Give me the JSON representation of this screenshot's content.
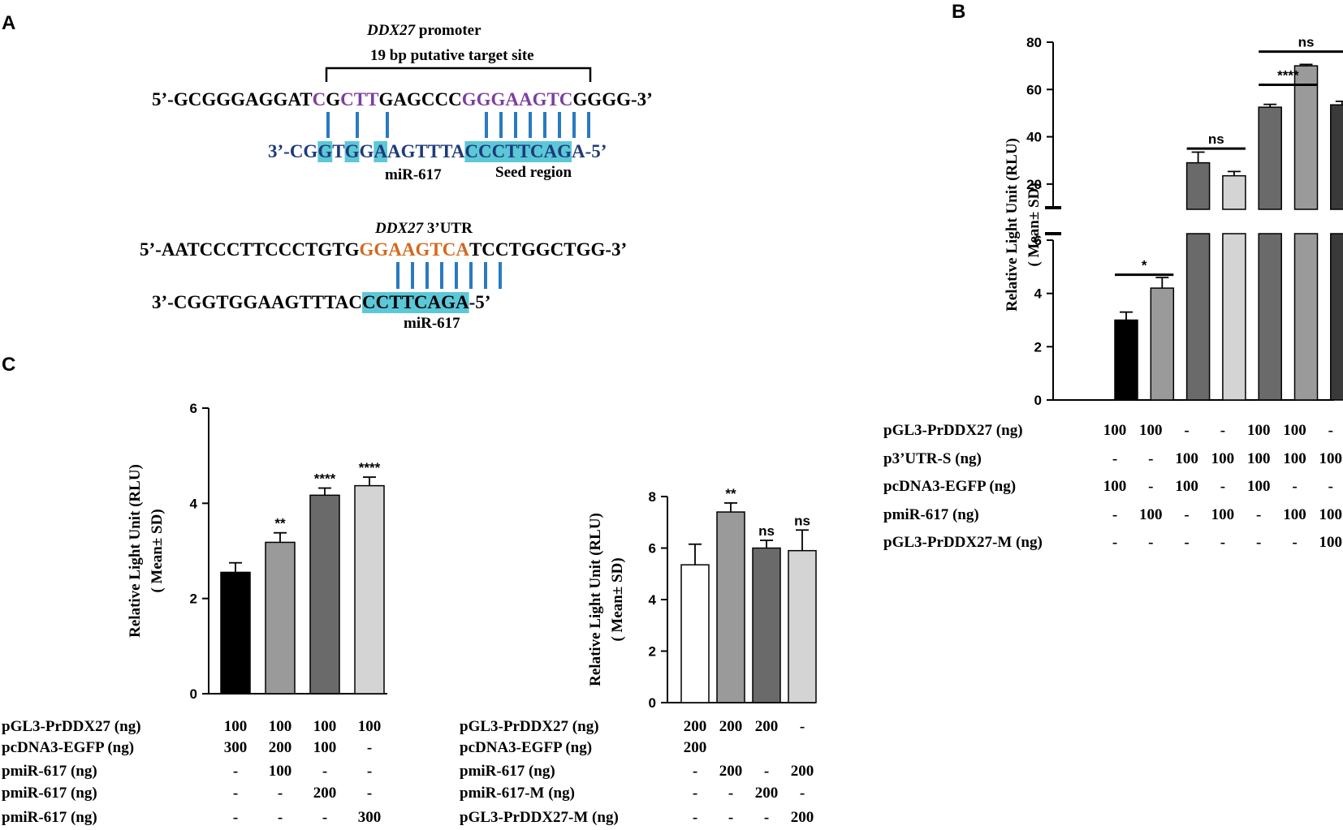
{
  "panelA": {
    "letter": "A",
    "promoter": {
      "gene": "DDX27",
      "suffix": " promoter",
      "site_label": "19 bp putative target site",
      "top_parts": [
        {
          "t": "5’-GCGGGAGGAT",
          "c": "#000000"
        },
        {
          "t": "C",
          "c": "#7b3fa0"
        },
        {
          "t": "G",
          "c": "#000000"
        },
        {
          "t": "C",
          "c": "#7b3fa0"
        },
        {
          "t": "TT",
          "c": "#7b3fa0"
        },
        {
          "t": "GAGCCC",
          "c": "#000000"
        },
        {
          "t": "GGGAAGTC",
          "c": "#7b3fa0"
        },
        {
          "t": "GGGG-3’",
          "c": "#000000"
        }
      ],
      "bottom_parts": [
        {
          "t": "3’-CG",
          "c": "#1f3a7a",
          "h": false
        },
        {
          "t": "G",
          "c": "#1f3a7a",
          "h": true
        },
        {
          "t": "T",
          "c": "#1f3a7a",
          "h": false
        },
        {
          "t": "G",
          "c": "#1f3a7a",
          "h": true
        },
        {
          "t": "G",
          "c": "#1f3a7a",
          "h": false
        },
        {
          "t": "A",
          "c": "#1f3a7a",
          "h": true
        },
        {
          "t": "AGTTTA",
          "c": "#1f3a7a",
          "h": false
        },
        {
          "t": "CCCTTCAG",
          "c": "#1f3a7a",
          "h": true
        },
        {
          "t": "A-5’",
          "c": "#1f3a7a",
          "h": false
        }
      ],
      "mirna_label": "miR-617",
      "seed_label": "Seed region"
    },
    "utr": {
      "gene": "DDX27",
      "suffix": " 3’UTR",
      "top_parts": [
        {
          "t": "5’-AATCCCTTCCCTGTG",
          "c": "#000000"
        },
        {
          "t": "GGAAGTCA",
          "c": "#d2691e"
        },
        {
          "t": "TCCTGGCTGG-3’",
          "c": "#000000"
        }
      ],
      "bottom_parts": [
        {
          "t": "3’-CGGTGGAAGTTTAC",
          "c": "#000000",
          "h": false
        },
        {
          "t": "CCTTCAGA",
          "c": "#000000",
          "h": true
        },
        {
          "t": "-5’",
          "c": "#000000",
          "h": false
        }
      ],
      "mirna_label": "miR-617"
    },
    "highlight_color": "#5bc8d8",
    "pair_color": "#2a7ac0"
  },
  "chart_data": [
    {
      "id": "B",
      "type": "bar",
      "panel_letter": "B",
      "ylabel": "Relative Light Unit (RLU)",
      "ylabel2": "( Mean± SD)",
      "broken_axis": true,
      "lower_range": [
        0,
        6
      ],
      "lower_ticks": [
        "0",
        "2",
        "4",
        "6"
      ],
      "upper_range": [
        10,
        80
      ],
      "upper_ticks": [
        "20",
        "40",
        "60",
        "80"
      ],
      "values": [
        3.0,
        4.2,
        29,
        23.5,
        52.5,
        70,
        53.5
      ],
      "errors": [
        0.3,
        0.4,
        4.5,
        1.8,
        1.2,
        0.6,
        1.5
      ],
      "bar_colors": [
        "#000000",
        "#9a9a9a",
        "#6a6a6a",
        "#d4d4d4",
        "#6a6a6a",
        "#9a9a9a",
        "#3a3a3a"
      ],
      "significance": [
        {
          "from": 0,
          "to": 1,
          "label": "*",
          "value": 4.7
        },
        {
          "from": 2,
          "to": 3,
          "label": "ns",
          "value": 35
        },
        {
          "from": 4,
          "to": 5,
          "label": "****",
          "value": 62
        },
        {
          "from": 4,
          "to": 6,
          "label": "ns",
          "value": 76
        }
      ],
      "conditions": [
        {
          "name": "pGL3-PrDDX27  (ng)",
          "values": [
            "100",
            "100",
            "-",
            "-",
            "100",
            "100",
            "-"
          ]
        },
        {
          "name": "p3’UTR-S  (ng)",
          "values": [
            "-",
            "-",
            "100",
            "100",
            "100",
            "100",
            "100"
          ]
        },
        {
          "name": "pcDNA3-EGFP  (ng)",
          "values": [
            "100",
            "-",
            "100",
            "-",
            "100",
            "-",
            "-"
          ]
        },
        {
          "name": "pmiR-617  (ng)",
          "values": [
            "-",
            "100",
            "-",
            "100",
            "-",
            "100",
            "100"
          ]
        },
        {
          "name": "pGL3-PrDDX27-M  (ng)",
          "values": [
            "-",
            "-",
            "-",
            "-",
            "-",
            "-",
            "100"
          ]
        }
      ]
    },
    {
      "id": "C1",
      "type": "bar",
      "panel_letter": "C",
      "ylabel": "Relative Light Unit (RLU)",
      "ylabel2": "( Mean± SD)",
      "ylim": [
        0,
        6
      ],
      "ticks": [
        "0",
        "2",
        "4",
        "6"
      ],
      "values": [
        2.55,
        3.18,
        4.17,
        4.37
      ],
      "errors": [
        0.2,
        0.2,
        0.15,
        0.18
      ],
      "bar_colors": [
        "#000000",
        "#9a9a9a",
        "#6a6a6a",
        "#d4d4d4"
      ],
      "bar_labels": [
        "",
        "**",
        "****",
        "****"
      ],
      "conditions": [
        {
          "name": "pGL3-PrDDX27  (ng)",
          "values": [
            "100",
            "100",
            "100",
            "100"
          ]
        },
        {
          "name": "pcDNA3-EGFP  (ng)",
          "values": [
            "300",
            "200",
            "100",
            "-"
          ]
        },
        {
          "name": "pmiR-617  (ng)",
          "values": [
            "-",
            "100",
            "-",
            "-"
          ]
        },
        {
          "name": "pmiR-617  (ng)",
          "values": [
            "-",
            "-",
            "200",
            "-"
          ]
        },
        {
          "name": "pmiR-617  (ng)",
          "values": [
            "-",
            "-",
            "-",
            "300"
          ]
        }
      ]
    },
    {
      "id": "C2",
      "type": "bar",
      "ylabel": "Relative Light Unit (RLU)",
      "ylabel2": "( Mean± SD)",
      "ylim": [
        0,
        8
      ],
      "ticks": [
        "0",
        "2",
        "4",
        "6",
        "8"
      ],
      "values": [
        5.35,
        7.4,
        6.0,
        5.9
      ],
      "errors": [
        0.8,
        0.35,
        0.3,
        0.8
      ],
      "bar_colors": [
        "#ffffff",
        "#9a9a9a",
        "#6a6a6a",
        "#d4d4d4"
      ],
      "bar_labels": [
        "",
        "**",
        "ns",
        "ns"
      ],
      "conditions": [
        {
          "name": "pGL3-PrDDX27  (ng)",
          "values": [
            "200",
            "200",
            "200",
            "-"
          ]
        },
        {
          "name": "pcDNA3-EGFP  (ng)",
          "values": [
            "200",
            "",
            "",
            ""
          ]
        },
        {
          "name": "pmiR-617  (ng)",
          "values": [
            "-",
            "200",
            "-",
            "200"
          ]
        },
        {
          "name": "pmiR-617-M  (ng)",
          "values": [
            "-",
            "-",
            "200",
            "-"
          ]
        },
        {
          "name": "pGL3-PrDDX27-M  (ng)",
          "values": [
            "-",
            "-",
            "-",
            "200"
          ]
        }
      ]
    }
  ]
}
